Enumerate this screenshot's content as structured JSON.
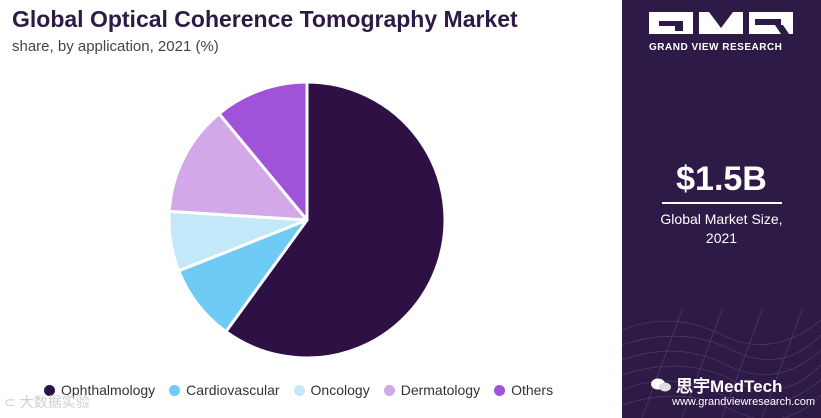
{
  "header": {
    "title": "Global Optical Coherence Tomography Market",
    "subtitle": "share, by application, 2021 (%)"
  },
  "chart_data": {
    "type": "pie",
    "title": "Global Optical Coherence Tomography Market",
    "subtitle": "share, by application, 2021 (%)",
    "categories": [
      "Ophthalmology",
      "Cardiovascular",
      "Oncology",
      "Dermatology",
      "Others"
    ],
    "values": [
      60,
      9,
      7,
      13,
      11
    ],
    "colors": [
      "#2e1045",
      "#6ecbf5",
      "#c2e8fa",
      "#d2a8e8",
      "#a052d8"
    ],
    "start_angle_deg": 0,
    "direction": "clockwise",
    "legend_position": "bottom"
  },
  "sidebar": {
    "brand": "GRAND VIEW RESEARCH",
    "market_value": "$1.5B",
    "market_label_line1": "Global Market Size,",
    "market_label_line2": "2021",
    "url": "www.grandviewresearch.com"
  },
  "watermarks": {
    "left": "大数据实验",
    "right": "思宇MedTech"
  },
  "colors": {
    "sidebar_bg": "#2e1a47",
    "title": "#2d1b45"
  }
}
